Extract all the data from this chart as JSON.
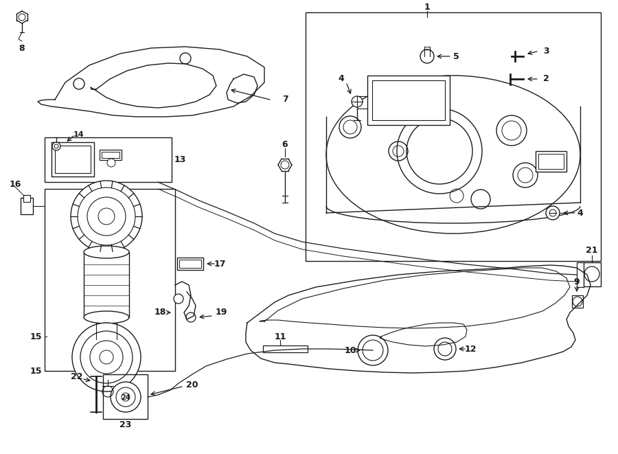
{
  "bg_color": "#ffffff",
  "line_color": "#1a1a1a",
  "figsize": [
    9.0,
    6.61
  ],
  "dpi": 100,
  "lw": 1.0,
  "font_size": 9,
  "font_bold": "bold"
}
